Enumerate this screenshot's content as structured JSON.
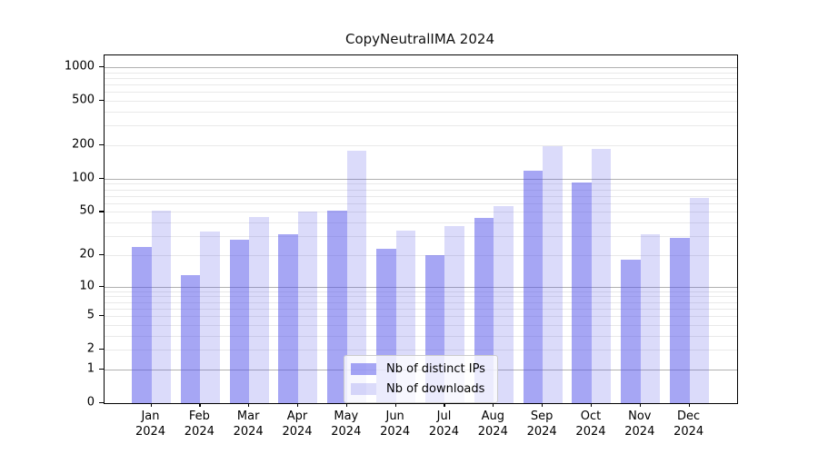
{
  "title": "CopyNeutralIMA 2024",
  "chart_data": {
    "type": "bar",
    "title": "CopyNeutralIMA 2024",
    "categories": [
      "Jan",
      "Feb",
      "Mar",
      "Apr",
      "May",
      "Jun",
      "Jul",
      "Aug",
      "Sep",
      "Oct",
      "Nov",
      "Dec"
    ],
    "category_year": "2024",
    "series": [
      {
        "name": "Nb of distinct IPs",
        "color": "rgba(85,85,233,0.52)",
        "values": [
          24,
          13,
          28,
          31,
          51,
          23,
          20,
          44,
          118,
          93,
          18,
          29
        ]
      },
      {
        "name": "Nb of downloads",
        "color": "rgba(85,85,233,0.21)",
        "values": [
          51,
          33,
          45,
          50,
          180,
          34,
          37,
          57,
          197,
          184,
          31,
          67
        ]
      }
    ],
    "yscale": "log1p",
    "yticks": [
      0,
      1,
      2,
      5,
      10,
      20,
      50,
      100,
      200,
      500,
      1000
    ],
    "ylim": [
      0,
      1276
    ],
    "grid_major": [
      1,
      10,
      100,
      1000
    ],
    "grid_minor": [
      2,
      3,
      4,
      5,
      6,
      7,
      8,
      9,
      20,
      30,
      40,
      50,
      60,
      70,
      80,
      90,
      200,
      300,
      400,
      500,
      600,
      700,
      800,
      900
    ],
    "legend_position": "lower center",
    "colors": {
      "frame": "#000000",
      "grid_major": "#b0b0b0",
      "grid_minor": "#e9e9e9",
      "text": "#000000"
    }
  }
}
